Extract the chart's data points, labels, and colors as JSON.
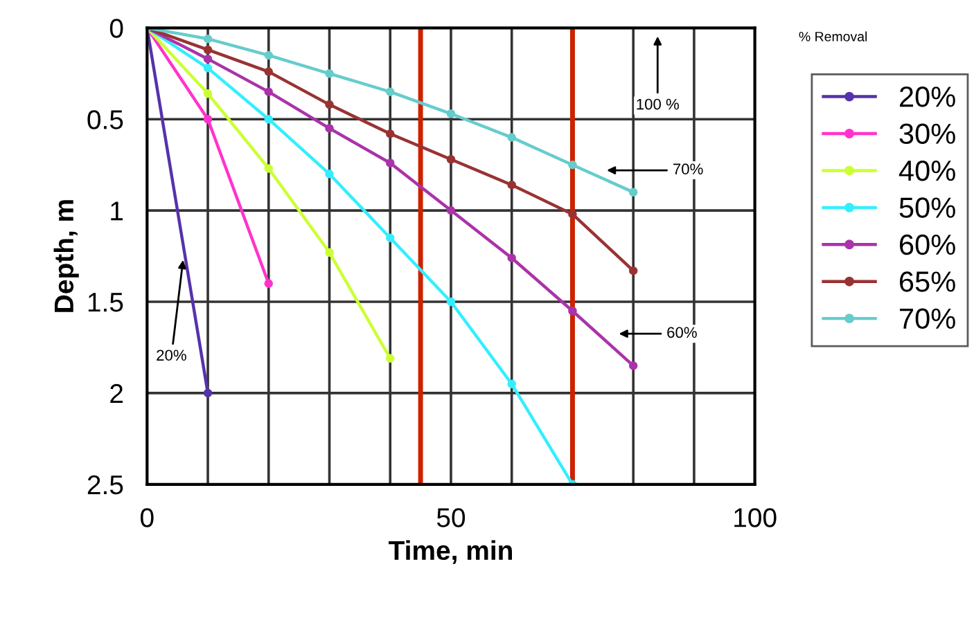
{
  "chart_data": {
    "type": "line",
    "xlabel": "Time, min",
    "ylabel": "Depth, m",
    "legend_title": "% Removal",
    "xlim": [
      0,
      100
    ],
    "ylim": [
      2.5,
      0
    ],
    "xticks": [
      0,
      {
        "value": 10,
        "label": null
      },
      {
        "value": 20,
        "label": null
      },
      {
        "value": 30,
        "label": null
      },
      {
        "value": 40,
        "label": null
      },
      50,
      {
        "value": 60,
        "label": null
      },
      {
        "value": 70,
        "label": null
      },
      {
        "value": 80,
        "label": null
      },
      {
        "value": 90,
        "label": null
      },
      100
    ],
    "yticks": [
      0,
      0.5,
      1,
      1.5,
      2,
      2.5
    ],
    "grid": true,
    "legend": "right",
    "marker": "circle",
    "line_style": "solid",
    "series": [
      {
        "name": "20%",
        "color": "#5533aa",
        "x": [
          0,
          10
        ],
        "values": [
          0,
          2.0
        ]
      },
      {
        "name": "30%",
        "color": "#ff33cc",
        "x": [
          0,
          10,
          20
        ],
        "values": [
          0,
          0.5,
          1.4
        ]
      },
      {
        "name": "40%",
        "color": "#ccff33",
        "x": [
          0,
          10,
          20,
          30,
          40
        ],
        "values": [
          0,
          0.36,
          0.77,
          1.23,
          1.81
        ]
      },
      {
        "name": "50%",
        "color": "#33eeff",
        "x": [
          0,
          10,
          20,
          30,
          40,
          50,
          60,
          70
        ],
        "values": [
          0,
          0.22,
          0.5,
          0.8,
          1.15,
          1.5,
          1.95,
          2.5
        ]
      },
      {
        "name": "60%",
        "color": "#aa33aa",
        "x": [
          0,
          10,
          20,
          30,
          40,
          50,
          60,
          70,
          80
        ],
        "values": [
          0,
          0.17,
          0.35,
          0.55,
          0.74,
          1.0,
          1.26,
          1.55,
          1.85
        ]
      },
      {
        "name": "65%",
        "color": "#993333",
        "x": [
          0,
          10,
          20,
          30,
          40,
          50,
          60,
          70,
          80
        ],
        "values": [
          0,
          0.12,
          0.24,
          0.42,
          0.58,
          0.72,
          0.86,
          1.02,
          1.33
        ]
      },
      {
        "name": "70%",
        "color": "#66cccc",
        "x": [
          0,
          10,
          20,
          30,
          40,
          50,
          60,
          70,
          80
        ],
        "values": [
          0,
          0.06,
          0.15,
          0.25,
          0.35,
          0.47,
          0.6,
          0.75,
          0.9
        ]
      }
    ],
    "ref_lines": [
      {
        "axis": "x",
        "value": 45,
        "color": "#cc2200"
      },
      {
        "axis": "x",
        "value": 70,
        "color": "#cc2200"
      }
    ],
    "annotations": [
      "100 %",
      {
        "text": "70%",
        "x": 75,
        "y": 0.78
      },
      "60%",
      {
        "text": "20%",
        "x": 6,
        "y": 1.25
      }
    ]
  }
}
